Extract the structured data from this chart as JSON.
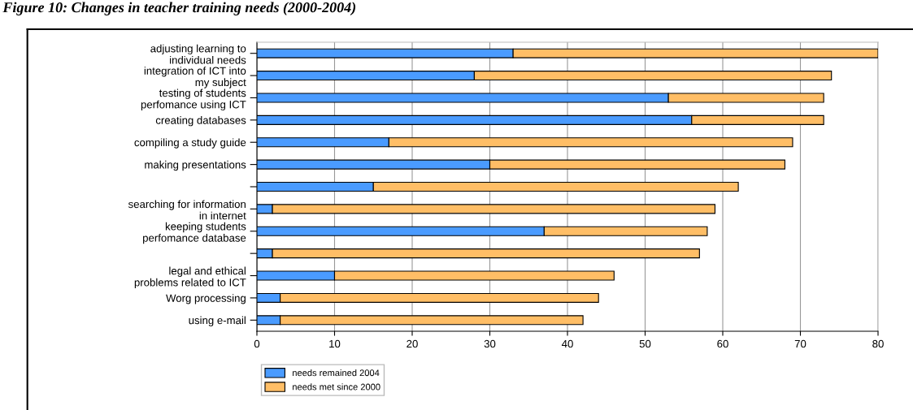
{
  "chart_data": {
    "type": "bar",
    "orientation": "horizontal",
    "stacked": true,
    "title": "Figure 10: Changes in teacher training needs (2000-2004)",
    "categories": [
      "adjusting learning to\nindividual needs",
      "integration of ICT into\nmy subject",
      "testing of students\nperfomance using ICT",
      "creating databases",
      "compiling a study guide",
      "making presentations",
      null,
      "searching for information\nin internet",
      "keeping students\nperfomance database",
      null,
      "legal and ethical\nproblems related to ICT",
      "Worg processing",
      "using e-mail"
    ],
    "series": [
      {
        "name": "needs remained 2004",
        "color": "#4a9bff",
        "values": [
          33,
          28,
          53,
          56,
          17,
          30,
          15,
          2,
          37,
          2,
          10,
          3,
          3
        ]
      },
      {
        "name": "needs met since 2000",
        "color": "#ffbe66",
        "values": [
          47,
          46,
          20,
          17,
          52,
          38,
          47,
          57,
          21,
          55,
          36,
          41,
          39
        ]
      }
    ],
    "xlim": [
      0,
      80
    ],
    "xticks": [
      0,
      10,
      20,
      30,
      40,
      50,
      60,
      70,
      80
    ],
    "grid": "x",
    "legend": "bottom left"
  }
}
